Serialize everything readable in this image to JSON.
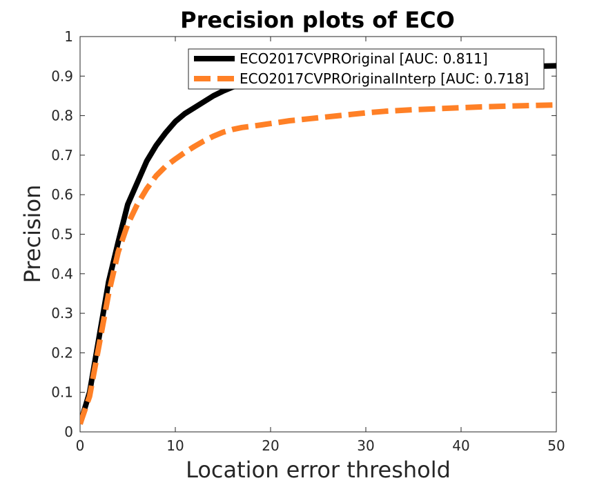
{
  "chart_data": {
    "type": "line",
    "title": "Precision plots of ECO",
    "xlabel": "Location error threshold",
    "ylabel": "Precision",
    "xlim": [
      0,
      50
    ],
    "ylim": [
      0,
      1
    ],
    "xticks": [
      "0",
      "10",
      "20",
      "30",
      "40",
      "50"
    ],
    "yticks": [
      "0",
      "0.1",
      "0.2",
      "0.3",
      "0.4",
      "0.5",
      "0.6",
      "0.7",
      "0.8",
      "0.9",
      "1"
    ],
    "grid": false,
    "legend_position": "top-right",
    "series": [
      {
        "name": "ECO2017CVPROriginal [AUC: 0.811]",
        "color": "#000000",
        "style": "solid",
        "x": [
          0,
          1,
          2,
          3,
          4,
          5,
          6,
          7,
          8,
          9,
          10,
          11,
          12,
          13,
          14,
          15,
          16,
          17,
          18,
          19,
          20,
          22,
          24,
          26,
          28,
          30,
          32,
          35,
          38,
          40,
          42,
          45,
          48,
          50
        ],
        "y": [
          0.02,
          0.1,
          0.24,
          0.38,
          0.48,
          0.575,
          0.63,
          0.685,
          0.725,
          0.757,
          0.785,
          0.805,
          0.82,
          0.835,
          0.85,
          0.862,
          0.872,
          0.879,
          0.885,
          0.889,
          0.893,
          0.899,
          0.904,
          0.908,
          0.911,
          0.914,
          0.916,
          0.919,
          0.921,
          0.922,
          0.923,
          0.924,
          0.925,
          0.926
        ]
      },
      {
        "name": "ECO2017CVPROriginalInterp [AUC: 0.718]",
        "color": "#ff8026",
        "style": "dashed",
        "x": [
          0,
          1,
          2,
          3,
          4,
          5,
          6,
          7,
          8,
          9,
          10,
          11,
          12,
          13,
          14,
          15,
          16,
          17,
          18,
          20,
          22,
          24,
          26,
          28,
          30,
          32,
          35,
          38,
          40,
          42,
          45,
          48,
          50
        ],
        "y": [
          0.02,
          0.09,
          0.22,
          0.35,
          0.455,
          0.525,
          0.575,
          0.615,
          0.648,
          0.672,
          0.69,
          0.707,
          0.722,
          0.736,
          0.748,
          0.758,
          0.765,
          0.77,
          0.773,
          0.78,
          0.787,
          0.792,
          0.797,
          0.802,
          0.807,
          0.811,
          0.815,
          0.818,
          0.82,
          0.822,
          0.824,
          0.826,
          0.827
        ]
      }
    ]
  }
}
